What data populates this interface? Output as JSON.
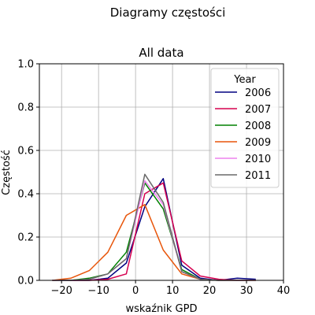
{
  "chart_data": {
    "type": "line",
    "suptitle": "Diagramy częstości",
    "title": "All data",
    "xlabel": "wskaźnik GPD",
    "ylabel": "Częstość",
    "xlim": [
      -26,
      40
    ],
    "ylim": [
      0,
      1.0
    ],
    "xticks": [
      -20,
      -10,
      0,
      10,
      20,
      30,
      40
    ],
    "xtick_labels": [
      "−20",
      "−10",
      "0",
      "10",
      "20",
      "30",
      "40"
    ],
    "yticks": [
      0,
      0.2,
      0.4,
      0.6,
      0.8,
      1.0
    ],
    "ytick_labels": [
      "0.0",
      "0.2",
      "0.4",
      "0.6",
      "0.8",
      "1.0"
    ],
    "grid": true,
    "legend": {
      "title": "Year",
      "placement": "top-right"
    },
    "x": [
      -22.5,
      -17.5,
      -12.5,
      -7.5,
      -2.5,
      2.5,
      7.5,
      12.5,
      17.5,
      22.5,
      27.5,
      32.5
    ],
    "series": [
      {
        "name": "2006",
        "color": "#000080",
        "values": [
          0.0,
          0.0,
          0.0,
          0.01,
          0.08,
          0.34,
          0.47,
          0.07,
          0.01,
          0.0,
          0.01,
          0.005
        ]
      },
      {
        "name": "2007",
        "color": "#d6004f",
        "values": [
          0.0,
          0.0,
          0.0,
          0.005,
          0.03,
          0.4,
          0.45,
          0.09,
          0.02,
          0.005,
          0.0,
          0.0
        ]
      },
      {
        "name": "2008",
        "color": "#008000",
        "values": [
          0.0,
          0.0,
          0.01,
          0.03,
          0.13,
          0.45,
          0.33,
          0.05,
          0.005,
          0.0,
          0.0,
          0.0
        ]
      },
      {
        "name": "2009",
        "color": "#e8550a",
        "values": [
          0.0,
          0.01,
          0.045,
          0.13,
          0.3,
          0.35,
          0.14,
          0.03,
          0.005,
          0.0,
          0.0,
          0.0
        ]
      },
      {
        "name": "2010",
        "color": "#ee82ee",
        "values": [
          0.0,
          0.0,
          0.005,
          0.03,
          0.1,
          0.46,
          0.35,
          0.04,
          0.005,
          0.0,
          0.0,
          0.0
        ]
      },
      {
        "name": "2011",
        "color": "#696969",
        "values": [
          0.0,
          0.0,
          0.005,
          0.03,
          0.1,
          0.49,
          0.36,
          0.04,
          0.005,
          0.0,
          0.0,
          0.0
        ]
      }
    ]
  }
}
